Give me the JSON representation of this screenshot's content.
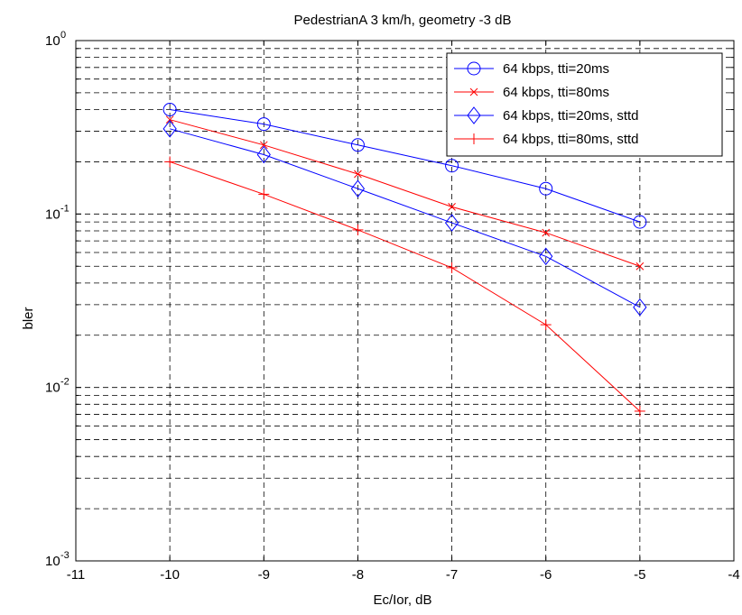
{
  "chart_data": {
    "type": "line",
    "title": "PedestrianA 3 km/h, geometry -3 dB",
    "xlabel": "Ec/Ior, dB",
    "ylabel": "bler",
    "xlim": [
      -11,
      -4
    ],
    "ylim": [
      0.001,
      1
    ],
    "yscale": "log",
    "grid": true,
    "legend_position": "top-right",
    "x_ticks": [
      "-11",
      "-10",
      "-9",
      "-8",
      "-7",
      "-6",
      "-5",
      "-4"
    ],
    "y_tick_base": "10",
    "y_tick_exponents": [
      "-3",
      "-2",
      "-1",
      "0"
    ],
    "x": [
      -10,
      -9,
      -8,
      -7,
      -6,
      -5
    ],
    "series": [
      {
        "name": "64 kbps, tti=20ms",
        "color": "#0000ff",
        "marker": "circle",
        "values": [
          0.4,
          0.33,
          0.25,
          0.19,
          0.14,
          0.09
        ]
      },
      {
        "name": "64 kbps, tti=80ms",
        "color": "#ff0000",
        "marker": "x",
        "values": [
          0.35,
          0.25,
          0.17,
          0.11,
          0.078,
          0.05
        ]
      },
      {
        "name": "64 kbps, tti=20ms, sttd",
        "color": "#0000ff",
        "marker": "diamond",
        "values": [
          0.31,
          0.22,
          0.14,
          0.089,
          0.057,
          0.029
        ]
      },
      {
        "name": "64 kbps, tti=80ms, sttd",
        "color": "#ff0000",
        "marker": "plus",
        "values": [
          0.2,
          0.13,
          0.081,
          0.049,
          0.023,
          0.0073
        ]
      }
    ]
  }
}
